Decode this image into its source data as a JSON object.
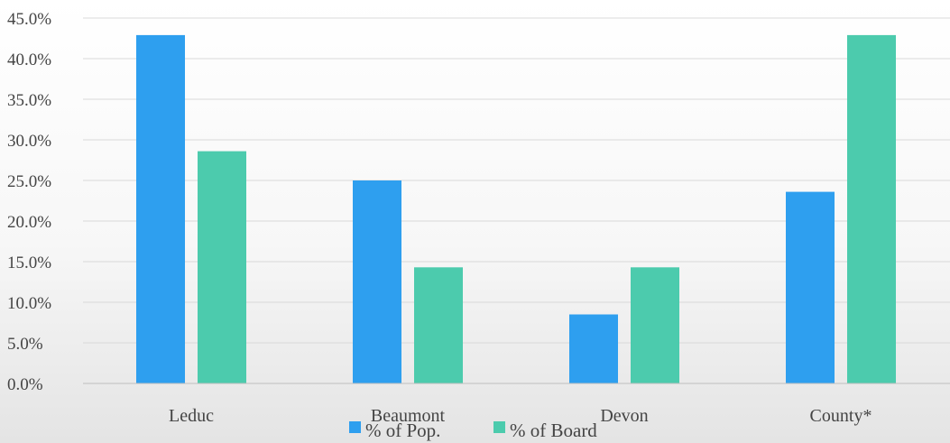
{
  "chart_data": {
    "type": "bar",
    "categories": [
      "Leduc",
      "Beaumont",
      "Devon",
      "County*"
    ],
    "series": [
      {
        "name": "% of Pop.",
        "color": "#2e9fef",
        "values": [
          42.9,
          25.0,
          8.5,
          23.6
        ]
      },
      {
        "name": "% of Board",
        "color": "#4ccbad",
        "values": [
          28.6,
          14.3,
          14.3,
          42.9
        ]
      }
    ],
    "ylim": [
      0,
      45
    ],
    "y_ticks": [
      0,
      5,
      10,
      15,
      20,
      25,
      30,
      35,
      40,
      45
    ],
    "y_tick_labels": [
      "0.0%",
      "5.0%",
      "10.0%",
      "15.0%",
      "20.0%",
      "25.0%",
      "30.0%",
      "35.0%",
      "40.0%",
      "45.0%"
    ],
    "grid": true,
    "legend_position": "bottom",
    "title": "",
    "xlabel": "",
    "ylabel": ""
  }
}
